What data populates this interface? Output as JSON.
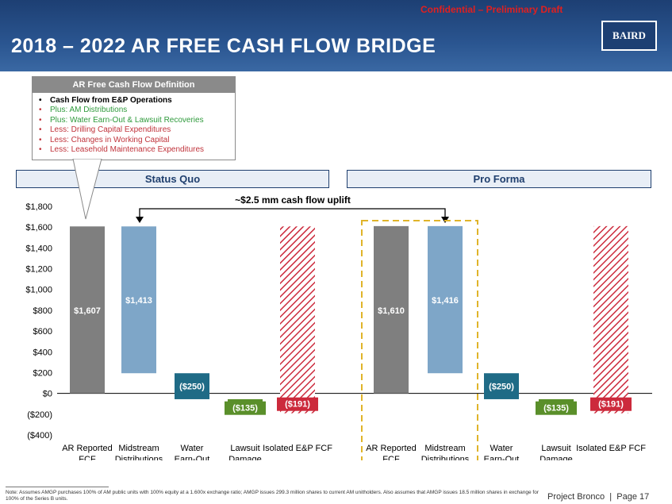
{
  "header": {
    "confidential": "Confidential – Preliminary Draft",
    "title": "2018 – 2022 AR FREE CASH FLOW BRIDGE",
    "logo": "BAIRD"
  },
  "definition_box": {
    "title": "AR Free Cash Flow Definition",
    "items": [
      {
        "text": "Cash Flow from E&P Operations",
        "color": "black"
      },
      {
        "text": "Plus: AM Distributions",
        "color": "green"
      },
      {
        "text": "Plus: Water Earn-Out & Lawsuit Recoveries",
        "color": "green"
      },
      {
        "text": "Less: Drilling Capital Expenditures",
        "color": "red"
      },
      {
        "text": "Less: Changes in Working Capital",
        "color": "red"
      },
      {
        "text": "Less: Leasehold Maintenance Expenditures",
        "color": "red"
      }
    ]
  },
  "sections": {
    "status_quo": "Status Quo",
    "pro_forma": "Pro Forma"
  },
  "uplift_label": "~$2.5 mm cash flow uplift",
  "chart_data": {
    "type": "bar",
    "subtype": "waterfall",
    "ylim": [
      -400,
      1800
    ],
    "y_ticks": [
      -400,
      -200,
      0,
      200,
      400,
      600,
      800,
      1000,
      1200,
      1400,
      1600,
      1800
    ],
    "y_tick_labels": [
      "($400)",
      "($200)",
      "$0",
      "$200",
      "$400",
      "$600",
      "$800",
      "$1,000",
      "$1,200",
      "$1,400",
      "$1,600",
      "$1,800"
    ],
    "grid": false,
    "colors": {
      "gray": "#7f7f7f",
      "blue": "#7ea6c8",
      "teal": "#1f6b86",
      "green": "#5a8f2a",
      "red": "#cc2a3c"
    },
    "groups": [
      {
        "name": "Status Quo",
        "bars": [
          {
            "category": "AR Reported FCF Generation",
            "start": 0,
            "end": 1607,
            "label": "$1,607",
            "style": "gray"
          },
          {
            "category": "Midstream Distributions",
            "start": 1607,
            "end": 194,
            "label": "$1,413",
            "style": "blue"
          },
          {
            "category": "Water Earn-Out",
            "start": 194,
            "end": -56,
            "label": "($250)",
            "style": "teal"
          },
          {
            "category": "Lawsuit Damage Recoveries",
            "start": -56,
            "end": -191,
            "label": "($135)",
            "style": "green"
          },
          {
            "category": "Isolated E&P FCF",
            "start": -191,
            "end": 1607,
            "label": "($191)",
            "style": "red-hatch"
          }
        ]
      },
      {
        "name": "Pro Forma",
        "bars": [
          {
            "category": "AR Reported FCF Generation",
            "start": 0,
            "end": 1610,
            "label": "$1,610",
            "style": "gray"
          },
          {
            "category": "Midstream Distributions",
            "start": 1610,
            "end": 194,
            "label": "$1,416",
            "style": "blue"
          },
          {
            "category": "Water Earn-Out",
            "start": 194,
            "end": -56,
            "label": "($250)",
            "style": "teal"
          },
          {
            "category": "Lawsuit Damage Recoveries",
            "start": -56,
            "end": -191,
            "label": "($135)",
            "style": "green"
          },
          {
            "category": "Isolated E&P FCF",
            "start": -191,
            "end": 1610,
            "label": "($191)",
            "style": "red-hatch"
          }
        ]
      }
    ]
  },
  "footnote": "Note: Assumes AMGP purchases 100% of AM public units with 100% equity at a 1.600x exchange ratio; AMGP issues 299.3 million shares to current AM unitholders. Also assumes that AMGP issues 18.5 million shares in exchange for 100% of the Series B units.",
  "page": {
    "project": "Project Bronco",
    "separator": "|",
    "number": "Page 17"
  }
}
